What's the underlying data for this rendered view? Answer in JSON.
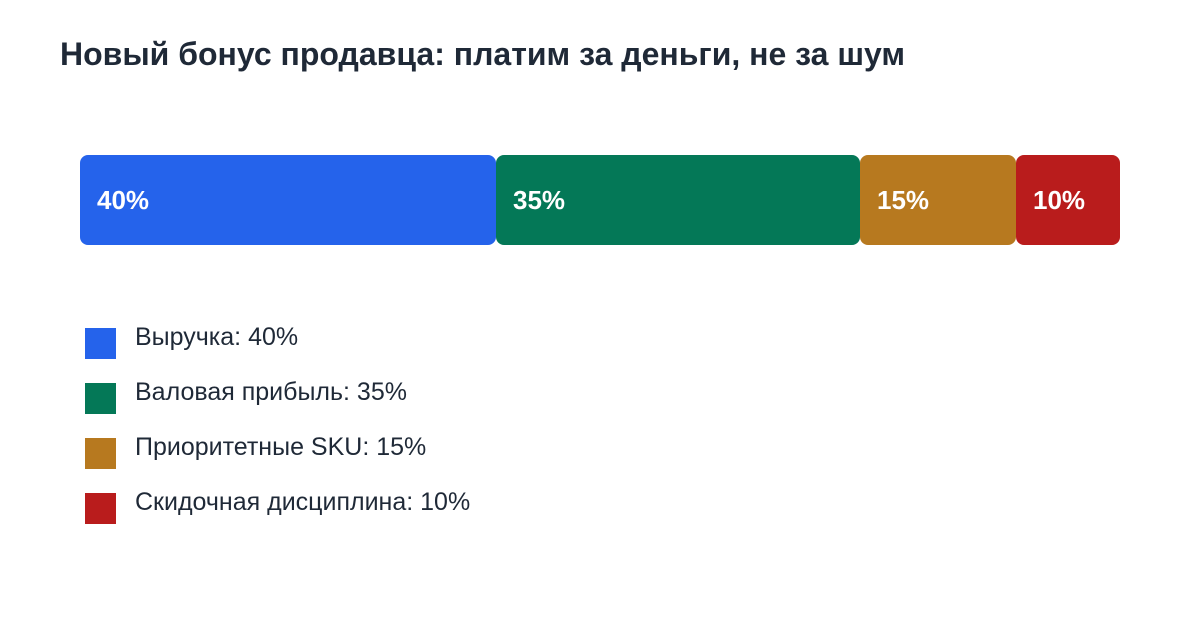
{
  "chart_data": {
    "type": "bar",
    "orientation": "horizontal-stacked",
    "title": "Новый бонус продавца: платим за деньги, не за шум",
    "categories": [
      "Выручка",
      "Валовая прибыль",
      "Приоритетные SKU",
      "Скидочная дисциплина"
    ],
    "values": [
      40,
      35,
      15,
      10
    ],
    "unit": "%",
    "segment_labels": [
      "40%",
      "35%",
      "15%",
      "10%"
    ],
    "legend_labels": [
      "Выручка: 40%",
      "Валовая прибыль: 35%",
      "Приоритетные SKU: 15%",
      "Скидочная дисциплина: 10%"
    ],
    "colors": [
      "#2563eb",
      "#047857",
      "#b7791f",
      "#b91c1c"
    ],
    "legend_placement": "bottom-left",
    "grid": false
  }
}
